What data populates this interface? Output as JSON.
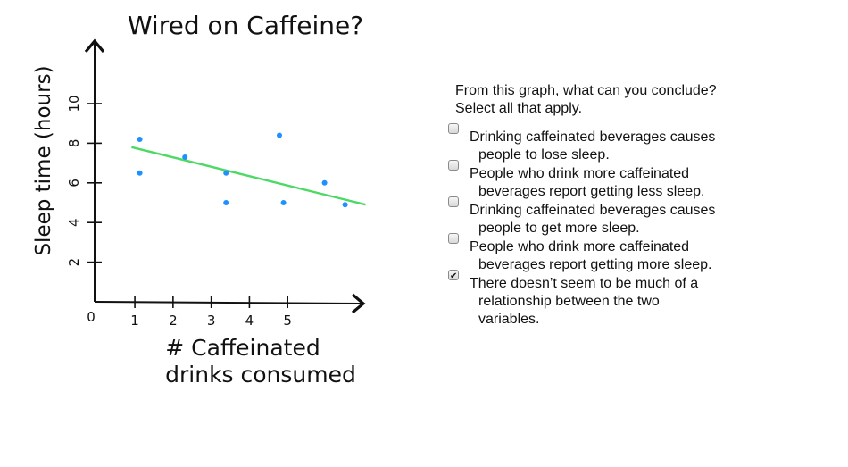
{
  "graph": {
    "title": "Wired on Caffeine?",
    "ylabel": "Sleep time (hours)",
    "xlabel_line1": "# Caffeinated",
    "xlabel_line2": "drinks consumed",
    "origin_label": "0",
    "colors": {
      "points": "#1e90ff",
      "trend": "#4cd964",
      "axes": "#111111"
    }
  },
  "chart_data": {
    "type": "scatter",
    "title": "Wired on Caffeine?",
    "xlabel": "# Caffeinated drinks consumed",
    "ylabel": "Sleep time (hours)",
    "x_ticks": [
      "1",
      "2",
      "3",
      "4",
      "5"
    ],
    "y_ticks": [
      "2",
      "4",
      "6",
      "8",
      "10"
    ],
    "xlim": [
      0,
      7
    ],
    "ylim": [
      0,
      11
    ],
    "series": [
      {
        "points": [
          {
            "x": 1.1,
            "y": 8.2
          },
          {
            "x": 1.1,
            "y": 6.5
          },
          {
            "x": 2.2,
            "y": 7.3
          },
          {
            "x": 3.2,
            "y": 6.5
          },
          {
            "x": 3.2,
            "y": 5.0
          },
          {
            "x": 4.5,
            "y": 8.4
          },
          {
            "x": 4.6,
            "y": 5.0
          },
          {
            "x": 5.6,
            "y": 6.0
          },
          {
            "x": 6.1,
            "y": 4.9
          }
        ]
      }
    ],
    "trendline": {
      "x": [
        0.9,
        6.6
      ],
      "y": [
        7.8,
        4.9
      ]
    },
    "grid": false
  },
  "question": {
    "prompt_line1": "From this graph, what can you conclude?",
    "prompt_line2": "Select all that apply.",
    "options": [
      {
        "line1": "Drinking caffeinated beverages causes",
        "line2": "people to lose sleep.",
        "checked": false
      },
      {
        "line1": "People who drink more caffeinated",
        "line2": "beverages report getting less sleep.",
        "checked": false
      },
      {
        "line1": "Drinking caffeinated beverages causes",
        "line2": "people to get more sleep.",
        "checked": false
      },
      {
        "line1": "People who drink more caffeinated",
        "line2": "beverages report getting more sleep.",
        "checked": false
      },
      {
        "line1": "There doesn’t seem to be much of a",
        "line2": "relationship between the two",
        "line3": "variables.",
        "checked": true
      }
    ]
  }
}
